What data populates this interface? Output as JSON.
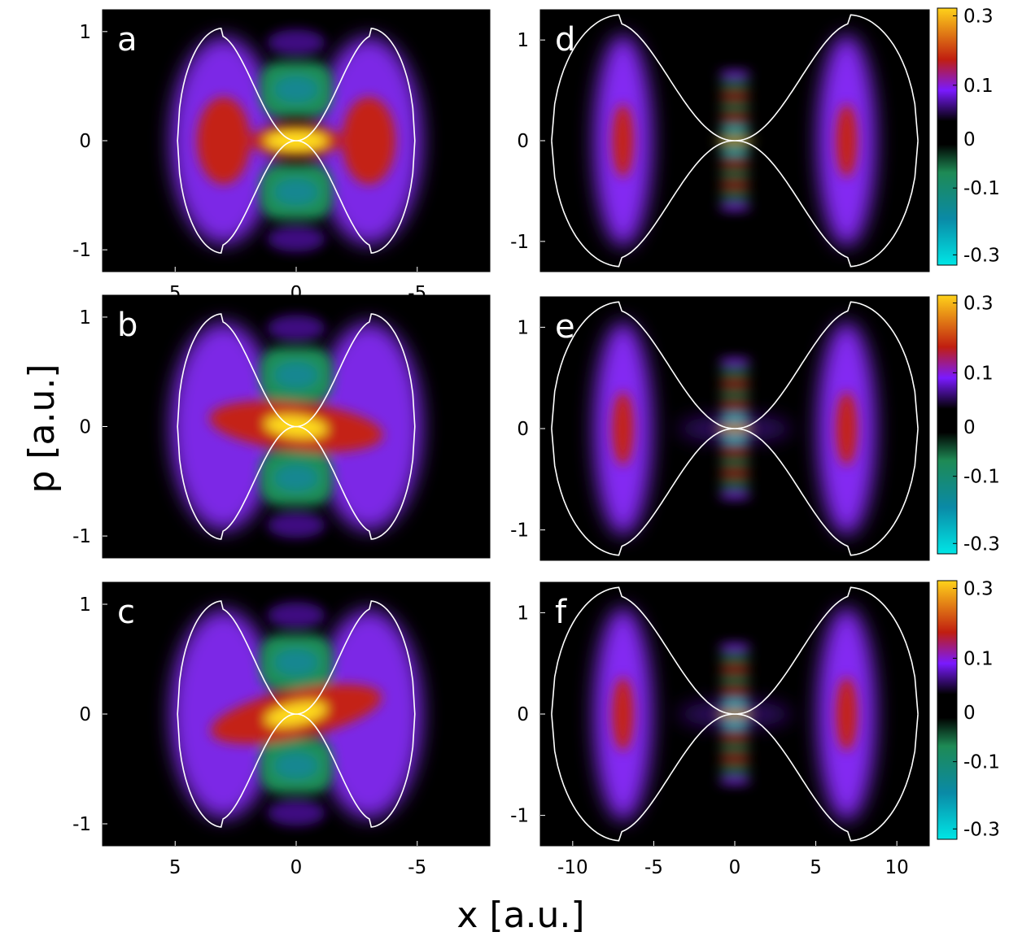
{
  "figure": {
    "xlabel": "x [a.u.]",
    "ylabel": "p [a.u.]"
  },
  "colorbar": {
    "ticks": [
      0.3,
      0.1,
      0,
      -0.1,
      -0.3
    ],
    "tick_labels": [
      "0.3",
      "0.1",
      "0",
      "-0.1",
      "-0.3"
    ],
    "colors": [
      "#00e6e6",
      "#0a8aa6",
      "#1e8a55",
      "#000000",
      "#7a1aff",
      "#c01e10",
      "#ffd21a"
    ]
  },
  "chart_data": [
    {
      "type": "heatmap",
      "panel": "a",
      "x_tick_labels": [
        "5",
        "0",
        "-5"
      ],
      "x_ticks": [
        5,
        0,
        -5
      ],
      "xlim": [
        8,
        -8
      ],
      "y_tick_labels": [
        "1",
        "0",
        "-1"
      ],
      "y_ticks": [
        1,
        0,
        -1
      ],
      "ylim": [
        -1.2,
        1.2
      ],
      "separatrix": {
        "half_width": 4.9,
        "lobe_x": 3.0,
        "max_p": 1.03
      },
      "colorbar": false
    },
    {
      "type": "heatmap",
      "panel": "b",
      "x_tick_labels": [],
      "x_ticks": [],
      "xlim": [
        8,
        -8
      ],
      "y_tick_labels": [
        "1",
        "0",
        "-1"
      ],
      "y_ticks": [
        1,
        0,
        -1
      ],
      "ylim": [
        -1.2,
        1.2
      ],
      "separatrix": {
        "half_width": 4.9,
        "lobe_x": 3.0,
        "max_p": 1.03
      },
      "colorbar": false
    },
    {
      "type": "heatmap",
      "panel": "c",
      "x_tick_labels": [
        "5",
        "0",
        "-5"
      ],
      "x_ticks": [
        5,
        0,
        -5
      ],
      "xlim": [
        8,
        -8
      ],
      "y_tick_labels": [
        "1",
        "0",
        "-1"
      ],
      "y_ticks": [
        1,
        0,
        -1
      ],
      "ylim": [
        -1.2,
        1.2
      ],
      "separatrix": {
        "half_width": 4.9,
        "lobe_x": 3.0,
        "max_p": 1.03
      },
      "colorbar": false
    },
    {
      "type": "heatmap",
      "panel": "d",
      "x_tick_labels": [],
      "x_ticks": [],
      "xlim": [
        -12,
        12
      ],
      "y_tick_labels": [
        "1",
        "0",
        "-1"
      ],
      "y_ticks": [
        1,
        0,
        -1
      ],
      "ylim": [
        -1.3,
        1.3
      ],
      "separatrix": {
        "half_width": 11.3,
        "lobe_x": 6.9,
        "max_p": 1.25
      },
      "colorbar": true
    },
    {
      "type": "heatmap",
      "panel": "e",
      "x_tick_labels": [],
      "x_ticks": [],
      "xlim": [
        -12,
        12
      ],
      "y_tick_labels": [
        "1",
        "0",
        "-1"
      ],
      "y_ticks": [
        1,
        0,
        -1
      ],
      "ylim": [
        -1.3,
        1.3
      ],
      "separatrix": {
        "half_width": 11.3,
        "lobe_x": 6.9,
        "max_p": 1.25
      },
      "colorbar": true
    },
    {
      "type": "heatmap",
      "panel": "f",
      "x_tick_labels": [
        "-10",
        "-5",
        "0",
        "5",
        "10"
      ],
      "x_ticks": [
        -10,
        -5,
        0,
        5,
        10
      ],
      "xlim": [
        -12,
        12
      ],
      "y_tick_labels": [
        "1",
        "0",
        "-1"
      ],
      "y_ticks": [
        1,
        0,
        -1
      ],
      "ylim": [
        -1.3,
        1.3
      ],
      "separatrix": {
        "half_width": 11.3,
        "lobe_x": 6.9,
        "max_p": 1.25
      },
      "colorbar": true
    }
  ]
}
